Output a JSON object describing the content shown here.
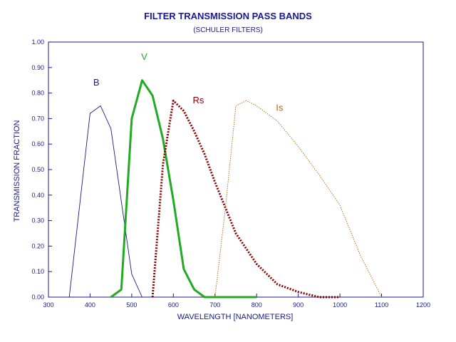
{
  "chart_data": {
    "type": "line",
    "title": "FILTER TRANSMISSION PASS BANDS",
    "subtitle": "(SCHULER FILTERS)",
    "xlabel": "WAVELENGTH [NANOMETERS]",
    "ylabel": "TRANSMISSION FRACTION",
    "xlim": [
      300,
      1200
    ],
    "ylim": [
      0,
      1.0
    ],
    "x_ticks": [
      "300",
      "400",
      "500",
      "600",
      "700",
      "800",
      "900",
      "1000",
      "1100",
      "1200"
    ],
    "y_ticks": [
      "0.00",
      "0.10",
      "0.20",
      "0.30",
      "0.40",
      "0.50",
      "0.60",
      "0.70",
      "0.80",
      "0.90",
      "1.00"
    ],
    "grid": false,
    "colors": {
      "axis": "#1a1a8c",
      "B": "#1a1a8c",
      "V": "#22aa22",
      "Rs": "#8b0000",
      "Is": "#b8660a"
    },
    "series": [
      {
        "name": "B",
        "style": "thin-solid",
        "points": [
          [
            350,
            0.0
          ],
          [
            400,
            0.72
          ],
          [
            425,
            0.75
          ],
          [
            450,
            0.66
          ],
          [
            500,
            0.09
          ],
          [
            525,
            0.0
          ]
        ]
      },
      {
        "name": "V",
        "style": "thick-solid",
        "points": [
          [
            450,
            0.0
          ],
          [
            475,
            0.03
          ],
          [
            500,
            0.7
          ],
          [
            525,
            0.85
          ],
          [
            550,
            0.79
          ],
          [
            575,
            0.62
          ],
          [
            600,
            0.38
          ],
          [
            625,
            0.11
          ],
          [
            650,
            0.03
          ],
          [
            675,
            0.0
          ],
          [
            800,
            0.0
          ]
        ]
      },
      {
        "name": "Rs",
        "style": "thick-dotted",
        "points": [
          [
            550,
            0.0
          ],
          [
            575,
            0.52
          ],
          [
            600,
            0.77
          ],
          [
            625,
            0.73
          ],
          [
            650,
            0.65
          ],
          [
            675,
            0.56
          ],
          [
            700,
            0.45
          ],
          [
            750,
            0.25
          ],
          [
            800,
            0.13
          ],
          [
            850,
            0.05
          ],
          [
            900,
            0.02
          ],
          [
            950,
            0.0
          ],
          [
            1000,
            0.0
          ]
        ]
      },
      {
        "name": "Is",
        "style": "thin-dotted",
        "points": [
          [
            700,
            0.0
          ],
          [
            725,
            0.35
          ],
          [
            750,
            0.75
          ],
          [
            775,
            0.77
          ],
          [
            800,
            0.75
          ],
          [
            850,
            0.69
          ],
          [
            900,
            0.59
          ],
          [
            950,
            0.48
          ],
          [
            1000,
            0.36
          ],
          [
            1050,
            0.16
          ],
          [
            1100,
            0.0
          ]
        ]
      }
    ],
    "series_labels": [
      {
        "text": "B",
        "x": 415,
        "y": 0.83
      },
      {
        "text": "V",
        "x": 530,
        "y": 0.93
      },
      {
        "text": "Rs",
        "x": 660,
        "y": 0.76
      },
      {
        "text": "Is",
        "x": 855,
        "y": 0.73
      }
    ]
  }
}
